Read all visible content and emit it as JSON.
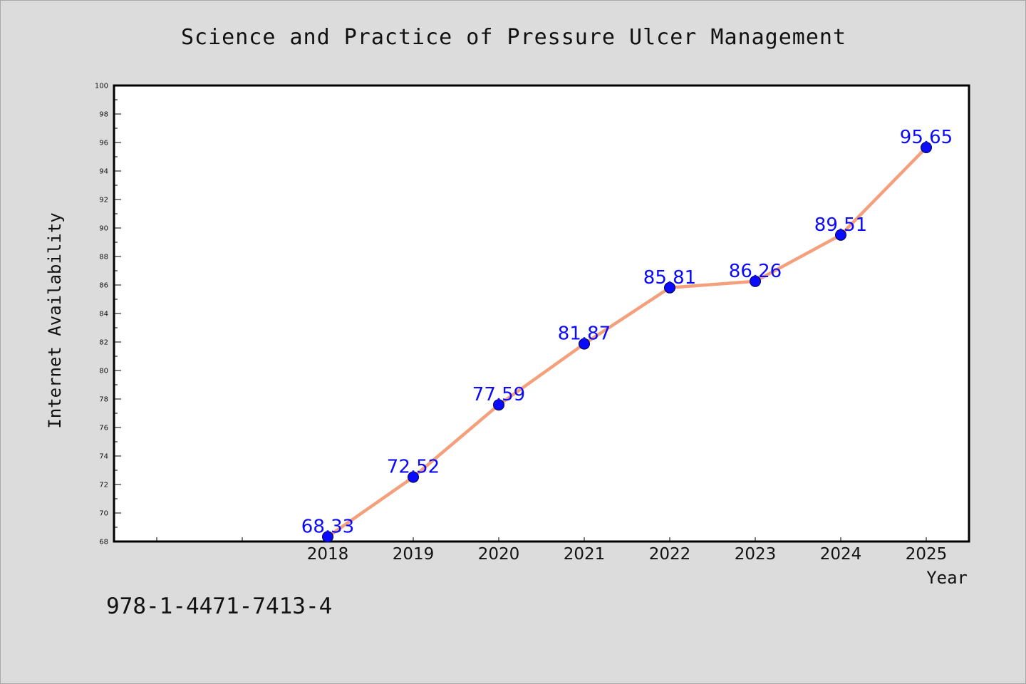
{
  "page": {
    "title": "Science and Practice of Pressure Ulcer Management",
    "isbn": "978-1-4471-7413-4"
  },
  "colors": {
    "background": "#dcdcdc",
    "plot_background": "#ffffff",
    "line": "#f5a07c",
    "marker": "#0a0aff",
    "data_label": "#0a0aff"
  },
  "chart_data": {
    "type": "line",
    "title": "Science and Practice of Pressure Ulcer Management",
    "xlabel": "Year",
    "ylabel": "Internet Availability",
    "x": [
      "",
      "",
      "2018",
      "2019",
      "2020",
      "2021",
      "2022",
      "2023",
      "2024",
      "2025"
    ],
    "series": [
      {
        "x": [
          "2018",
          "2019",
          "2020",
          "2021",
          "2022",
          "2023",
          "2024",
          "2025"
        ],
        "values": [
          68.33,
          72.52,
          77.59,
          81.87,
          85.81,
          86.26,
          89.51,
          95.65
        ],
        "labels": [
          "68.33",
          "72.52",
          "77.59",
          "81.87",
          "85.81",
          "86.26",
          "89.51",
          "95.65"
        ]
      }
    ],
    "ylim": [
      68,
      100
    ],
    "yticks": [
      "68",
      "70",
      "72",
      "74",
      "76",
      "78",
      "80",
      "82",
      "84",
      "86",
      "88",
      "90",
      "92",
      "94",
      "96",
      "98",
      "100"
    ],
    "grid": false,
    "legend": "none"
  }
}
